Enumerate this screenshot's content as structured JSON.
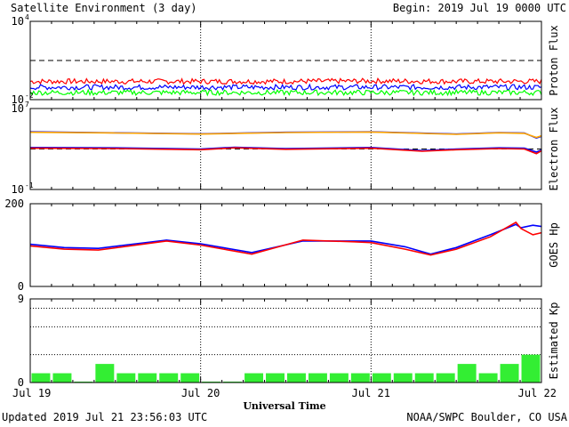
{
  "header": {
    "title": "Satellite Environment (3 day)",
    "begin": "Begin:  2019 Jul 19 0000 UTC"
  },
  "footer": {
    "updated": "Updated 2019 Jul 21 23:56:03 UTC",
    "credit": "NOAA/SWPC Boulder, CO USA"
  },
  "xaxis": {
    "label": "Universal Time",
    "ticks": [
      "Jul 19",
      "Jul 20",
      "Jul 21",
      "Jul 22"
    ],
    "range_days": [
      0,
      3
    ]
  },
  "colors": {
    "red": "#ff0000",
    "blue": "#0000ff",
    "green": "#00ff00",
    "orange": "#ffa500",
    "kp_bar": "#33ee33"
  },
  "chart_data": [
    {
      "type": "line",
      "panel": "proton",
      "ylabel": "Proton Flux",
      "yscale": "log",
      "ylim": [
        0.01,
        10000
      ],
      "yticks": [
        {
          "base": "10",
          "exp": "4"
        },
        {
          "base": "10",
          "exp": "-2"
        }
      ],
      "threshold": 10,
      "series": [
        {
          "color": "red",
          "x": [
            0,
            0.5,
            1,
            1.5,
            2,
            2.5,
            3
          ],
          "y": [
            0.25,
            0.25,
            0.25,
            0.25,
            0.27,
            0.25,
            0.25
          ]
        },
        {
          "color": "blue",
          "x": [
            0,
            0.5,
            1,
            1.5,
            2,
            2.5,
            3
          ],
          "y": [
            0.09,
            0.09,
            0.09,
            0.09,
            0.09,
            0.09,
            0.09
          ]
        },
        {
          "color": "green",
          "x": [
            0,
            0.5,
            1,
            1.5,
            2,
            2.5,
            3
          ],
          "y": [
            0.035,
            0.035,
            0.035,
            0.035,
            0.035,
            0.035,
            0.035
          ]
        }
      ]
    },
    {
      "type": "line",
      "panel": "electron",
      "ylabel": "Electron Flux",
      "yscale": "log",
      "ylim": [
        0.1,
        10000000
      ],
      "yticks": [
        {
          "base": "10",
          "exp": "7"
        },
        {
          "base": "10",
          "exp": "-1"
        }
      ],
      "threshold": 1000,
      "series": [
        {
          "color": "blue",
          "x": [
            0,
            0.5,
            1,
            1.5,
            2,
            2.5,
            2.75,
            2.9,
            2.97,
            3
          ],
          "y": [
            50000,
            40000,
            32000,
            45000,
            50000,
            30000,
            42000,
            38000,
            12000,
            18000
          ]
        },
        {
          "color": "orange",
          "x": [
            0,
            0.5,
            1,
            1.5,
            2,
            2.5,
            2.75,
            2.9,
            2.97,
            3
          ],
          "y": [
            45000,
            38000,
            30000,
            42000,
            48000,
            28000,
            40000,
            35000,
            14000,
            20000
          ]
        },
        {
          "color": "blue",
          "x": [
            0,
            0.5,
            1,
            1.2,
            1.5,
            2,
            2.3,
            2.5,
            2.75,
            2.9,
            2.97,
            3
          ],
          "y": [
            1400,
            1300,
            1000,
            1500,
            1100,
            1400,
            700,
            1000,
            1300,
            1200,
            500,
            800
          ]
        },
        {
          "color": "red",
          "x": [
            0,
            0.5,
            1,
            1.2,
            1.5,
            2,
            2.3,
            2.5,
            2.75,
            2.9,
            2.97,
            3
          ],
          "y": [
            1200,
            1100,
            850,
            1300,
            950,
            1200,
            600,
            850,
            1100,
            1000,
            350,
            650
          ]
        }
      ]
    },
    {
      "type": "line",
      "panel": "goes_hp",
      "ylabel": "GOES Hp",
      "yscale": "linear",
      "ylim": [
        0,
        200
      ],
      "yticks": [
        {
          "base": "200"
        },
        {
          "base": "0"
        }
      ],
      "series": [
        {
          "color": "blue",
          "x": [
            0,
            0.2,
            0.4,
            0.8,
            1.0,
            1.3,
            1.6,
            1.9,
            2.0,
            2.2,
            2.35,
            2.5,
            2.7,
            2.85,
            2.88,
            2.95,
            3
          ],
          "y": [
            102,
            94,
            92,
            112,
            103,
            82,
            110,
            110,
            110,
            96,
            78,
            94,
            125,
            150,
            142,
            148,
            145
          ]
        },
        {
          "color": "red",
          "x": [
            0,
            0.2,
            0.4,
            0.8,
            1.0,
            1.3,
            1.6,
            1.9,
            2.0,
            2.2,
            2.35,
            2.5,
            2.7,
            2.85,
            2.88,
            2.95,
            3
          ],
          "y": [
            98,
            90,
            88,
            110,
            100,
            78,
            112,
            108,
            106,
            90,
            76,
            90,
            120,
            155,
            140,
            125,
            130
          ]
        }
      ]
    },
    {
      "type": "bar",
      "panel": "kp",
      "ylabel": "Estimated Kp",
      "ylim": [
        0,
        9
      ],
      "yticks": [
        {
          "base": "9"
        },
        {
          "base": "0"
        }
      ],
      "values": [
        1,
        1,
        0.1,
        2,
        1,
        1,
        1,
        1,
        0.1,
        0.1,
        1,
        1,
        1,
        1,
        1,
        1,
        1,
        1,
        1,
        1,
        2,
        1,
        2,
        3
      ]
    }
  ]
}
